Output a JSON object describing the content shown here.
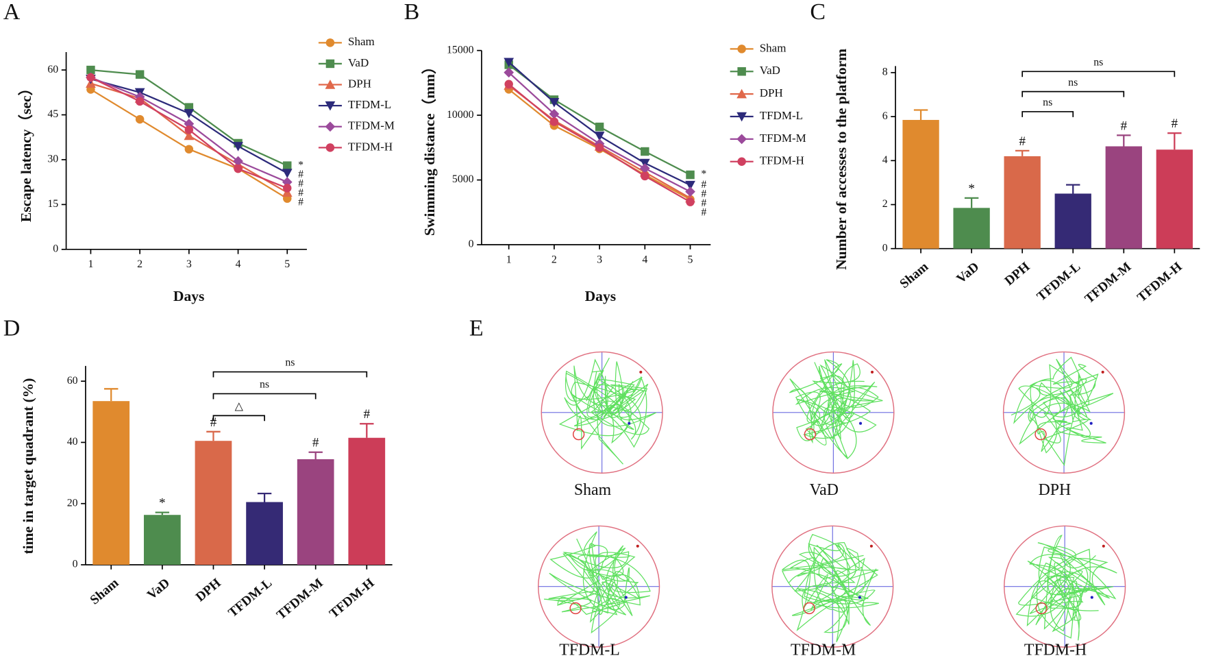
{
  "chart_data": [
    {
      "type": "line",
      "label": "A",
      "xlabel": "Days",
      "ylabel": "Escape latency（sec）",
      "x": [
        1,
        2,
        3,
        4,
        5
      ],
      "xlim": [
        0.5,
        5.4
      ],
      "xticks": [
        1,
        2,
        3,
        4,
        5
      ],
      "ylim": [
        0,
        66
      ],
      "yticks": [
        0,
        15,
        30,
        45,
        60
      ],
      "legend": "right",
      "series": [
        {
          "name": "Sham",
          "color": "#e08a2e",
          "marker": "circle",
          "values": [
            53.5,
            43.5,
            33.5,
            27,
            17
          ]
        },
        {
          "name": "VaD",
          "color": "#4e8c4e",
          "marker": "square",
          "values": [
            60,
            58.5,
            47.5,
            35.5,
            28
          ],
          "sig": "*"
        },
        {
          "name": "DPH",
          "color": "#e0684a",
          "marker": "triangle-up",
          "values": [
            55.5,
            50.5,
            38,
            28.5,
            19
          ],
          "sig": "#"
        },
        {
          "name": "TFDM-L",
          "color": "#2c2a7a",
          "marker": "triangle-down",
          "values": [
            57,
            52.5,
            45.5,
            34.5,
            25.5
          ],
          "sig": "#"
        },
        {
          "name": "TFDM-M",
          "color": "#9b4a9b",
          "marker": "diamond",
          "values": [
            57.5,
            51,
            42,
            29.5,
            22.5
          ],
          "sig": "#"
        },
        {
          "name": "TFDM-H",
          "color": "#d04060",
          "marker": "circle",
          "values": [
            57.5,
            49.5,
            40,
            27,
            20.5
          ],
          "sig": "#"
        }
      ]
    },
    {
      "type": "line",
      "label": "B",
      "xlabel": "Days",
      "ylabel": "Swimming distance（mm）",
      "x": [
        1,
        2,
        3,
        4,
        5
      ],
      "xlim": [
        0.4,
        5.45
      ],
      "xticks": [
        1,
        2,
        3,
        4,
        5
      ],
      "ylim": [
        0,
        15000
      ],
      "yticks": [
        0,
        5000,
        10000,
        15000
      ],
      "legend": "right",
      "series": [
        {
          "name": "Sham",
          "color": "#e08a2e",
          "marker": "circle",
          "values": [
            12000,
            9200,
            7400,
            5400,
            3500
          ]
        },
        {
          "name": "VaD",
          "color": "#4e8c4e",
          "marker": "square",
          "values": [
            13900,
            11200,
            9100,
            7200,
            5400
          ],
          "sig": "*"
        },
        {
          "name": "DPH",
          "color": "#e0684a",
          "marker": "triangle-up",
          "values": [
            12300,
            9600,
            7600,
            5600,
            3600
          ],
          "sig": "#"
        },
        {
          "name": "TFDM-L",
          "color": "#2c2a7a",
          "marker": "triangle-down",
          "values": [
            14100,
            11000,
            8400,
            6300,
            4600
          ],
          "sig": "#"
        },
        {
          "name": "TFDM-M",
          "color": "#9b4a9b",
          "marker": "diamond",
          "values": [
            13300,
            10100,
            7800,
            5900,
            4100
          ],
          "sig": "#"
        },
        {
          "name": "TFDM-H",
          "color": "#d04060",
          "marker": "circle",
          "values": [
            12400,
            9500,
            7500,
            5300,
            3300
          ],
          "sig": "#"
        }
      ]
    },
    {
      "type": "bar",
      "label": "C",
      "ylabel": "Number of accesses to the platform",
      "categories": [
        "Sham",
        "VaD",
        "DPH",
        "TFDM-L",
        "TFDM-M",
        "TFDM-H"
      ],
      "colors": [
        "#e08a2e",
        "#4e8c4e",
        "#d9694a",
        "#352a75",
        "#9a447f",
        "#cc3d58"
      ],
      "values": [
        5.85,
        1.85,
        4.2,
        2.5,
        4.65,
        4.5
      ],
      "errors": [
        0.45,
        0.45,
        0.25,
        0.4,
        0.5,
        0.75
      ],
      "sig": [
        null,
        "*",
        "#",
        null,
        "#",
        "#"
      ],
      "ylim": [
        0,
        8.3
      ],
      "yticks": [
        0,
        2,
        4,
        6,
        8
      ],
      "comparisons": [
        {
          "from": 2,
          "to": 3,
          "label": "ns"
        },
        {
          "from": 2,
          "to": 4,
          "label": "ns"
        },
        {
          "from": 2,
          "to": 5,
          "label": "ns"
        }
      ]
    },
    {
      "type": "bar",
      "label": "D",
      "ylabel": "time in target quadrant (%)",
      "categories": [
        "Sham",
        "VaD",
        "DPH",
        "TFDM-L",
        "TFDM-M",
        "TFDM-H"
      ],
      "colors": [
        "#e08a2e",
        "#4e8c4e",
        "#d9694a",
        "#352a75",
        "#9a447f",
        "#cc3d58"
      ],
      "values": [
        53.5,
        16.3,
        40.5,
        20.5,
        34.5,
        41.5
      ],
      "errors": [
        4,
        0.8,
        3,
        2.8,
        2.3,
        4.6
      ],
      "sig": [
        null,
        "*",
        "#",
        null,
        "#",
        "#"
      ],
      "ylim": [
        0,
        65
      ],
      "yticks": [
        0,
        20,
        40,
        60
      ],
      "comparisons": [
        {
          "from": 2,
          "to": 3,
          "label": "△"
        },
        {
          "from": 2,
          "to": 4,
          "label": "ns"
        },
        {
          "from": 2,
          "to": 5,
          "label": "ns"
        }
      ]
    }
  ],
  "trajectories": {
    "label": "E",
    "groups": [
      "Sham",
      "VaD",
      "DPH",
      "TFDM-L",
      "TFDM-M",
      "TFDM-H"
    ]
  }
}
